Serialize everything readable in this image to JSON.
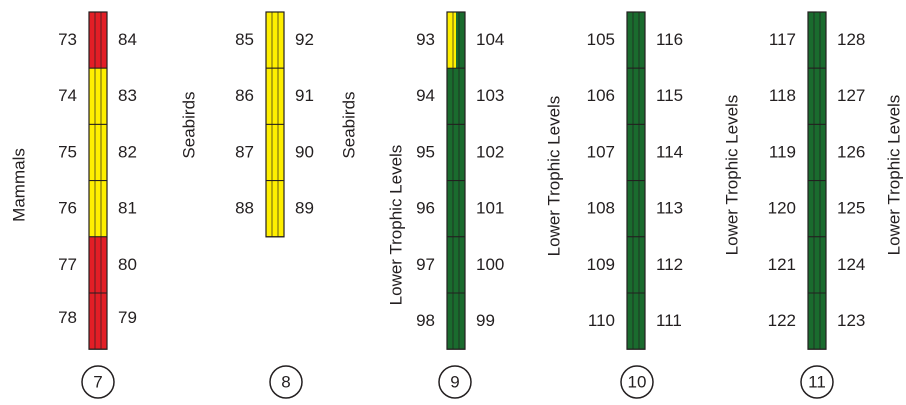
{
  "colors": {
    "red": "#e31e26",
    "yellow": "#ffef00",
    "green": "#1a6b2e",
    "stroke": "#231f20"
  },
  "columns": [
    {
      "number": "7",
      "group_labels": [
        "Mammals"
      ],
      "left_numbers": [
        "73",
        "74",
        "75",
        "76",
        "77",
        "78"
      ],
      "right_numbers": [
        "84",
        "83",
        "82",
        "81",
        "80",
        "79"
      ],
      "segment_colors": [
        "red",
        "yellow",
        "yellow",
        "yellow",
        "red",
        "red"
      ]
    },
    {
      "number": "8",
      "group_labels": [
        "Seabirds",
        "Seabirds"
      ],
      "left_numbers": [
        "85",
        "86",
        "87",
        "88"
      ],
      "right_numbers": [
        "92",
        "91",
        "90",
        "89"
      ],
      "segment_colors": [
        "yellow",
        "yellow",
        "yellow",
        "yellow"
      ]
    },
    {
      "number": "9",
      "group_labels": [
        "Lower Trophic Levels"
      ],
      "left_numbers": [
        "93",
        "94",
        "95",
        "96",
        "97",
        "98"
      ],
      "right_numbers": [
        "104",
        "103",
        "102",
        "101",
        "100",
        "99"
      ],
      "segment_colors": [
        "yellow-green",
        "green",
        "green",
        "green",
        "green",
        "green"
      ]
    },
    {
      "number": "10",
      "group_labels": [
        "Lower Trophic Levels"
      ],
      "left_numbers": [
        "105",
        "106",
        "107",
        "108",
        "109",
        "110"
      ],
      "right_numbers": [
        "116",
        "115",
        "114",
        "113",
        "112",
        "111"
      ],
      "segment_colors": [
        "green",
        "green",
        "green",
        "green",
        "green",
        "green"
      ]
    },
    {
      "number": "11",
      "group_labels": [
        "Lower Trophic Levels",
        "Lower Trophic Levels"
      ],
      "left_numbers": [
        "117",
        "118",
        "119",
        "120",
        "121",
        "122"
      ],
      "right_numbers": [
        "128",
        "127",
        "126",
        "125",
        "124",
        "123"
      ],
      "segment_colors": [
        "green",
        "green",
        "green",
        "green",
        "green",
        "green"
      ]
    }
  ]
}
